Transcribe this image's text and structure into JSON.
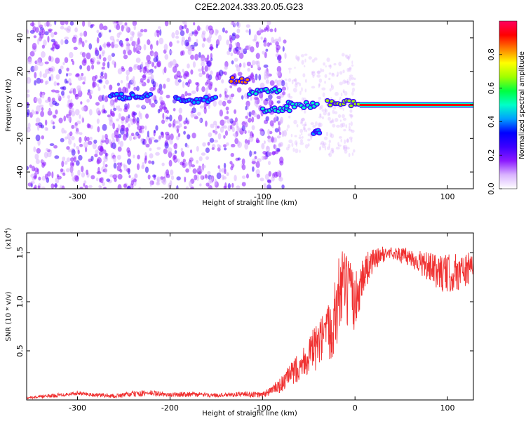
{
  "page": {
    "title": "C2E2.2024.333.20.05.G23"
  },
  "chart_data": [
    {
      "type": "heatmap",
      "title": "C2E2.2024.333.20.05.G23",
      "xlabel": "Height of straight line (km)",
      "ylabel": "Frequency (Hz)",
      "xlim": [
        -355,
        128
      ],
      "ylim": [
        -50,
        50
      ],
      "x_ticks": [
        -300,
        -200,
        -100,
        0,
        100
      ],
      "y_ticks": [
        -40,
        -20,
        0,
        20,
        40
      ],
      "colorbar": {
        "label": "Normalized spectral amplitude",
        "range": [
          0,
          1
        ],
        "ticks": [
          "0.0",
          "0.2",
          "0.4",
          "0.6",
          "0.8"
        ],
        "colors": [
          "#ffffff",
          "#d9b3ff",
          "#8c1aff",
          "#3c00ff",
          "#0000ff",
          "#00a0ff",
          "#00ffc8",
          "#00ff40",
          "#a0ff00",
          "#ffff00",
          "#ff8000",
          "#ff0000",
          "#ff0060"
        ]
      },
      "features": [
        {
          "x": [
            -265,
            -220
          ],
          "y": 5,
          "level": 0.45
        },
        {
          "x": [
            -195,
            -150
          ],
          "y": 3,
          "level": 0.45
        },
        {
          "x": [
            -135,
            -115
          ],
          "y": 15,
          "level": 0.8
        },
        {
          "x": [
            -115,
            -80
          ],
          "y": 8,
          "level": 0.5
        },
        {
          "x": [
            -100,
            -70
          ],
          "y": -3,
          "level": 0.5
        },
        {
          "x": [
            -75,
            -40
          ],
          "y": 0,
          "level": 0.5
        },
        {
          "x": [
            -45,
            -38
          ],
          "y": -16,
          "level": 0.4
        },
        {
          "x": [
            -30,
            5
          ],
          "y": 1,
          "level": 0.7
        },
        {
          "x": [
            5,
            128
          ],
          "y": 0,
          "level": 1.0
        }
      ],
      "grid": false,
      "legend": "none"
    },
    {
      "type": "line",
      "xlabel": "Height of straight line (km)",
      "ylabel": "SNR (10 * v/v)",
      "y_multiplier": "(x10",
      "y_multiplier_exp": "4",
      "y_multiplier_close": ")",
      "xlim": [
        -355,
        128
      ],
      "ylim": [
        0,
        1.7
      ],
      "x_ticks": [
        -300,
        -200,
        -100,
        0,
        100
      ],
      "y_ticks": [
        "0.5",
        "1.0",
        "1.5"
      ],
      "color": "#f03030",
      "series": [
        {
          "x": [
            -355,
            -320,
            -300,
            -280,
            -260,
            -240,
            -220,
            -200,
            -180,
            -160,
            -140,
            -120,
            -100,
            -90,
            -80,
            -70,
            -60,
            -50,
            -40,
            -30,
            -20,
            -15,
            -10,
            -5,
            0,
            10,
            20,
            30,
            40,
            50,
            60,
            70,
            80,
            90,
            100,
            110,
            120,
            128
          ],
          "values": [
            0.02,
            0.05,
            0.07,
            0.05,
            0.04,
            0.06,
            0.07,
            0.05,
            0.06,
            0.05,
            0.05,
            0.06,
            0.05,
            0.1,
            0.15,
            0.25,
            0.35,
            0.45,
            0.55,
            0.65,
            0.9,
            1.2,
            1.1,
            1.05,
            1.0,
            1.3,
            1.42,
            1.48,
            1.5,
            1.47,
            1.45,
            1.4,
            1.35,
            1.3,
            1.28,
            1.3,
            1.32,
            1.35
          ],
          "envelope": [
            0.01,
            0.02,
            0.02,
            0.02,
            0.02,
            0.03,
            0.03,
            0.02,
            0.03,
            0.02,
            0.02,
            0.03,
            0.03,
            0.05,
            0.08,
            0.12,
            0.15,
            0.2,
            0.25,
            0.3,
            0.4,
            0.45,
            0.4,
            0.35,
            0.3,
            0.2,
            0.12,
            0.08,
            0.06,
            0.08,
            0.1,
            0.12,
            0.15,
            0.18,
            0.2,
            0.2,
            0.18,
            0.15
          ]
        }
      ],
      "grid": false,
      "legend": "none"
    }
  ]
}
